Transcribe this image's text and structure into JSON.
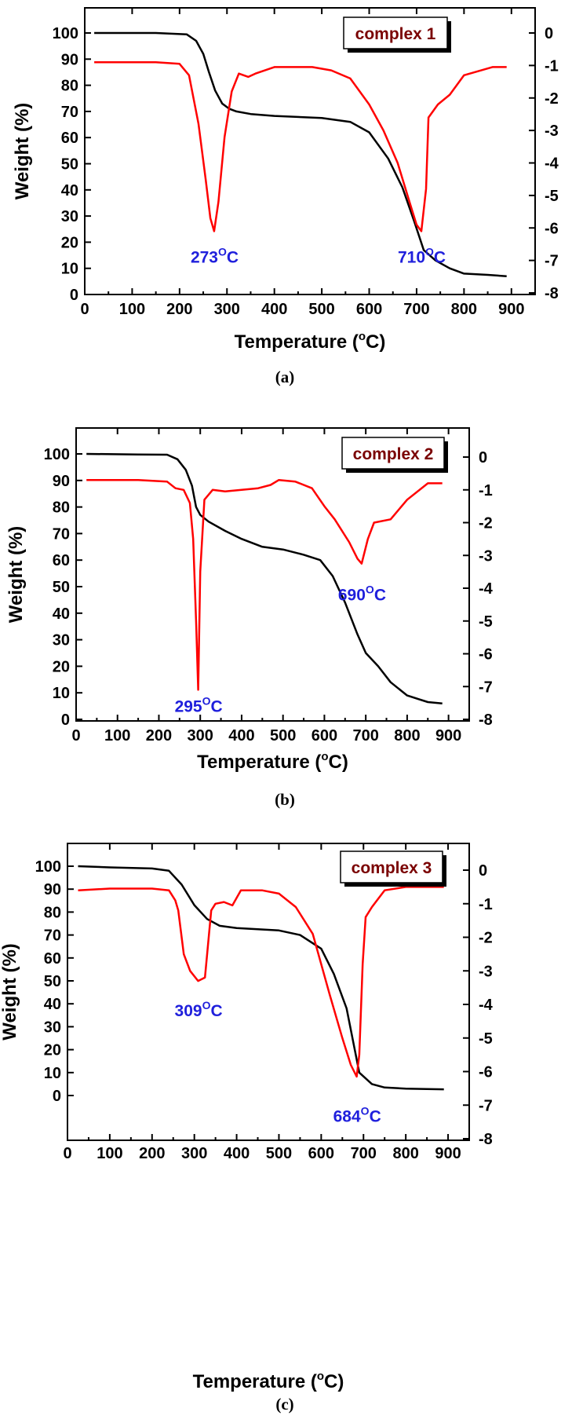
{
  "colors": {
    "tga": "#000000",
    "dtg": "#ff0000",
    "peak_label": "#1f1fdc",
    "legend": "#7a0000"
  },
  "chart_data": [
    {
      "type": "line",
      "panel_label": "(a)",
      "legend_label": "complex 1",
      "xlabel_main": "Temperature (",
      "xlabel_sup": "o",
      "xlabel_end": "C)",
      "ylabel": "Weight (%)",
      "xlim": [
        0,
        950
      ],
      "ylim": [
        0,
        108
      ],
      "y2lim": [
        -8,
        0.4
      ],
      "xticks": [
        "0",
        "100",
        "200",
        "300",
        "400",
        "500",
        "600",
        "700",
        "800",
        "900"
      ],
      "yticks": [
        "0",
        "10",
        "20",
        "30",
        "40",
        "50",
        "60",
        "70",
        "80",
        "90",
        "100"
      ],
      "y2ticks": [
        "0",
        "-1",
        "-2",
        "-3",
        "-4",
        "-5",
        "-6",
        "-7",
        "-8"
      ],
      "annotations": [
        {
          "num": "273",
          "sup": "O",
          "unit": "C",
          "x": 273,
          "y2": -6.3
        },
        {
          "num": "710",
          "sup": "O",
          "unit": "C",
          "x": 710,
          "y2": -6.3
        }
      ],
      "series": [
        {
          "axis": "left",
          "color": "#000000",
          "x": [
            20,
            150,
            215,
            235,
            250,
            262,
            275,
            290,
            305,
            320,
            350,
            400,
            500,
            560,
            600,
            640,
            670,
            695,
            715,
            740,
            770,
            800,
            850,
            890
          ],
          "y": [
            100,
            100,
            99.5,
            97,
            92,
            85,
            78,
            73,
            71,
            70,
            69,
            68.3,
            67.5,
            66,
            62,
            52,
            41,
            28,
            17,
            13,
            10,
            8,
            7.5,
            7
          ]
        },
        {
          "axis": "right",
          "color": "#ff0000",
          "x": [
            20,
            150,
            200,
            220,
            240,
            255,
            265,
            273,
            282,
            295,
            310,
            325,
            345,
            360,
            400,
            480,
            520,
            560,
            600,
            630,
            660,
            685,
            700,
            710,
            720,
            725,
            745,
            770,
            800,
            860,
            890
          ],
          "y": [
            -0.9,
            -0.9,
            -0.95,
            -1.3,
            -2.8,
            -4.5,
            -5.7,
            -6.1,
            -5.2,
            -3.2,
            -1.8,
            -1.25,
            -1.35,
            -1.25,
            -1.05,
            -1.05,
            -1.15,
            -1.4,
            -2.2,
            -3,
            -4,
            -5.2,
            -5.9,
            -6.1,
            -4.8,
            -2.6,
            -2.2,
            -1.9,
            -1.3,
            -1.05,
            -1.05
          ]
        }
      ]
    },
    {
      "type": "line",
      "panel_label": "(b)",
      "legend_label": "complex 2",
      "xlabel_main": "Temperature (",
      "xlabel_sup": "o",
      "xlabel_end": "C)",
      "ylabel": "Weight (%)",
      "xlim": [
        0,
        950
      ],
      "ylim": [
        0,
        110
      ],
      "y2lim": [
        -8,
        0.6
      ],
      "xticks": [
        "0",
        "100",
        "200",
        "300",
        "400",
        "500",
        "600",
        "700",
        "800",
        "900"
      ],
      "yticks": [
        "0",
        "10",
        "20",
        "30",
        "40",
        "50",
        "60",
        "70",
        "80",
        "90",
        "100"
      ],
      "y2ticks": [
        "0",
        "-1",
        "-2",
        "-3",
        "-4",
        "-5",
        "-6",
        "-7",
        "-8"
      ],
      "annotations": [
        {
          "num": "295",
          "sup": "O",
          "unit": "C",
          "x": 295,
          "y2": -7.0
        },
        {
          "num": "690",
          "sup": "O",
          "unit": "C",
          "x": 690,
          "y2": -3.6
        }
      ],
      "series": [
        {
          "axis": "left",
          "color": "#000000",
          "x": [
            25,
            150,
            220,
            245,
            265,
            280,
            290,
            300,
            320,
            360,
            400,
            450,
            500,
            550,
            590,
            620,
            650,
            680,
            700,
            730,
            760,
            800,
            850,
            885
          ],
          "y": [
            100,
            99.8,
            99.7,
            98,
            94,
            88,
            80,
            77,
            74.5,
            71,
            68,
            65,
            64,
            62,
            60,
            54,
            44,
            32,
            25,
            20,
            14,
            9,
            6.5,
            6
          ]
        },
        {
          "axis": "right",
          "color": "#ff0000",
          "x": [
            25,
            150,
            220,
            240,
            260,
            275,
            283,
            290,
            295,
            300,
            310,
            330,
            360,
            400,
            440,
            470,
            490,
            530,
            570,
            600,
            625,
            660,
            680,
            690,
            705,
            720,
            760,
            800,
            850,
            885
          ],
          "y": [
            -0.7,
            -0.7,
            -0.75,
            -0.95,
            -1.0,
            -1.4,
            -2.5,
            -5,
            -7.1,
            -3.5,
            -1.3,
            -1.0,
            -1.05,
            -1.0,
            -0.95,
            -0.85,
            -0.7,
            -0.75,
            -0.95,
            -1.5,
            -1.9,
            -2.6,
            -3.1,
            -3.25,
            -2.5,
            -2.0,
            -1.9,
            -1.3,
            -0.8,
            -0.8
          ]
        }
      ]
    },
    {
      "type": "line",
      "panel_label": "(c)",
      "legend_label": "complex 3",
      "xlabel_main": "Temperature (",
      "xlabel_sup": "o",
      "xlabel_end": "C)",
      "ylabel": "Weight (%)",
      "xlim": [
        0,
        950
      ],
      "ylim": [
        -8,
        109
      ],
      "y2lim": [
        -8,
        0.6
      ],
      "xticks": [
        "0",
        "100",
        "200",
        "300",
        "400",
        "500",
        "600",
        "700",
        "800",
        "900"
      ],
      "yticks": [
        "0",
        "10",
        "20",
        "30",
        "40",
        "50",
        "60",
        "70",
        "80",
        "90",
        "100"
      ],
      "y2ticks": [
        "0",
        "-1",
        "-2",
        "-3",
        "-4",
        "-5",
        "-6",
        "-7",
        "-8"
      ],
      "annotations": [
        {
          "num": "309",
          "sup": "O",
          "unit": "C",
          "x": 309,
          "y2": -3.6
        },
        {
          "num": "684",
          "sup": "O",
          "unit": "C",
          "x": 684,
          "y2": -6.75
        }
      ],
      "series": [
        {
          "axis": "left",
          "color": "#000000",
          "x": [
            25,
            100,
            200,
            240,
            270,
            300,
            330,
            360,
            400,
            450,
            500,
            550,
            600,
            630,
            660,
            690,
            720,
            750,
            800,
            850,
            890
          ],
          "y": [
            100,
            99.5,
            99,
            98,
            92,
            83,
            77,
            74,
            73,
            72.5,
            72,
            70,
            64,
            53,
            38,
            10,
            5,
            3.5,
            3,
            2.8,
            2.7
          ]
        },
        {
          "axis": "right",
          "color": "#ff0000",
          "x": [
            25,
            100,
            200,
            240,
            255,
            262,
            275,
            290,
            309,
            325,
            340,
            350,
            370,
            390,
            410,
            460,
            500,
            540,
            580,
            620,
            650,
            670,
            684,
            690,
            698,
            705,
            720,
            750,
            800,
            850,
            890
          ],
          "y": [
            -0.6,
            -0.55,
            -0.55,
            -0.6,
            -0.9,
            -1.2,
            -2.5,
            -3.0,
            -3.3,
            -3.2,
            -1.2,
            -1.0,
            -0.95,
            -1.05,
            -0.6,
            -0.6,
            -0.7,
            -1.1,
            -1.9,
            -3.7,
            -5.0,
            -5.8,
            -6.15,
            -5.5,
            -2.8,
            -1.4,
            -1.1,
            -0.6,
            -0.5,
            -0.5,
            -0.5
          ]
        }
      ]
    }
  ]
}
